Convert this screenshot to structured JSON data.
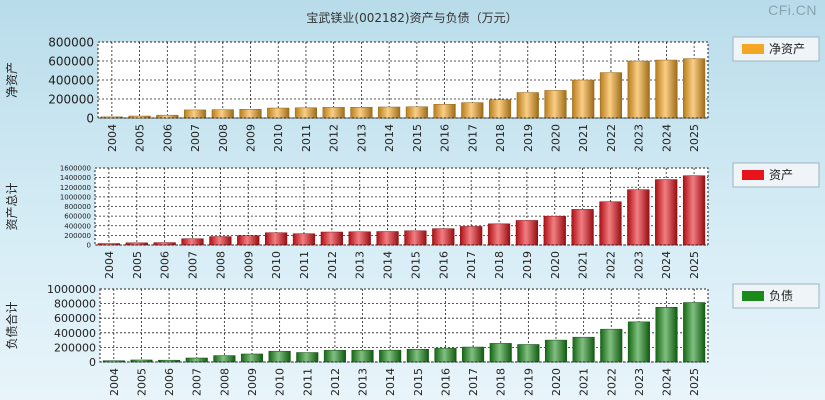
{
  "title": "宝武镁业(002182)资产与负债（万元）",
  "watermark": "CFi.CN",
  "chart_data": [
    {
      "type": "bar",
      "name": "净资产",
      "ylabel": "净资产",
      "legend": "净资产",
      "color": "#f5a623",
      "ylim": [
        0,
        800000
      ],
      "yticks": [
        0,
        200000,
        400000,
        600000,
        800000
      ],
      "categories": [
        "2004",
        "2005",
        "2006",
        "2007",
        "2008",
        "2009",
        "2010",
        "2011",
        "2012",
        "2013",
        "2014",
        "2015",
        "2016",
        "2017",
        "2018",
        "2019",
        "2020",
        "2021",
        "2022",
        "2023",
        "2024",
        "2025"
      ],
      "values": [
        12000,
        21000,
        30000,
        85000,
        88000,
        92000,
        105000,
        108000,
        112000,
        113000,
        116000,
        118000,
        145000,
        162000,
        192000,
        268000,
        290000,
        400000,
        478000,
        600000,
        610000,
        625000
      ]
    },
    {
      "type": "bar",
      "name": "资产",
      "ylabel": "资产总计",
      "legend": "资产",
      "color": "#e8141b",
      "ylim": [
        0,
        1600000
      ],
      "yticks": [
        0,
        200000,
        400000,
        600000,
        800000,
        1000000,
        1200000,
        1400000,
        1600000
      ],
      "categories": [
        "2004",
        "2005",
        "2006",
        "2007",
        "2008",
        "2009",
        "2010",
        "2011",
        "2012",
        "2013",
        "2014",
        "2015",
        "2016",
        "2017",
        "2018",
        "2019",
        "2020",
        "2021",
        "2022",
        "2023",
        "2024",
        "2025"
      ],
      "values": [
        30000,
        45000,
        50000,
        130000,
        175000,
        195000,
        255000,
        235000,
        270000,
        275000,
        280000,
        295000,
        340000,
        385000,
        440000,
        510000,
        600000,
        740000,
        900000,
        1150000,
        1360000,
        1440000
      ]
    },
    {
      "type": "bar",
      "name": "负债",
      "ylabel": "负债合计",
      "legend": "负债",
      "color": "#1a8a1a",
      "ylim": [
        0,
        1000000
      ],
      "yticks": [
        0,
        200000,
        400000,
        600000,
        800000,
        1000000
      ],
      "categories": [
        "2004",
        "2005",
        "2006",
        "2007",
        "2008",
        "2009",
        "2010",
        "2011",
        "2012",
        "2013",
        "2014",
        "2015",
        "2016",
        "2017",
        "2018",
        "2019",
        "2020",
        "2021",
        "2022",
        "2023",
        "2024",
        "2025"
      ],
      "values": [
        18000,
        28000,
        25000,
        55000,
        88000,
        110000,
        148000,
        130000,
        160000,
        160000,
        162000,
        175000,
        190000,
        205000,
        255000,
        240000,
        300000,
        340000,
        450000,
        550000,
        750000,
        815000
      ]
    }
  ]
}
